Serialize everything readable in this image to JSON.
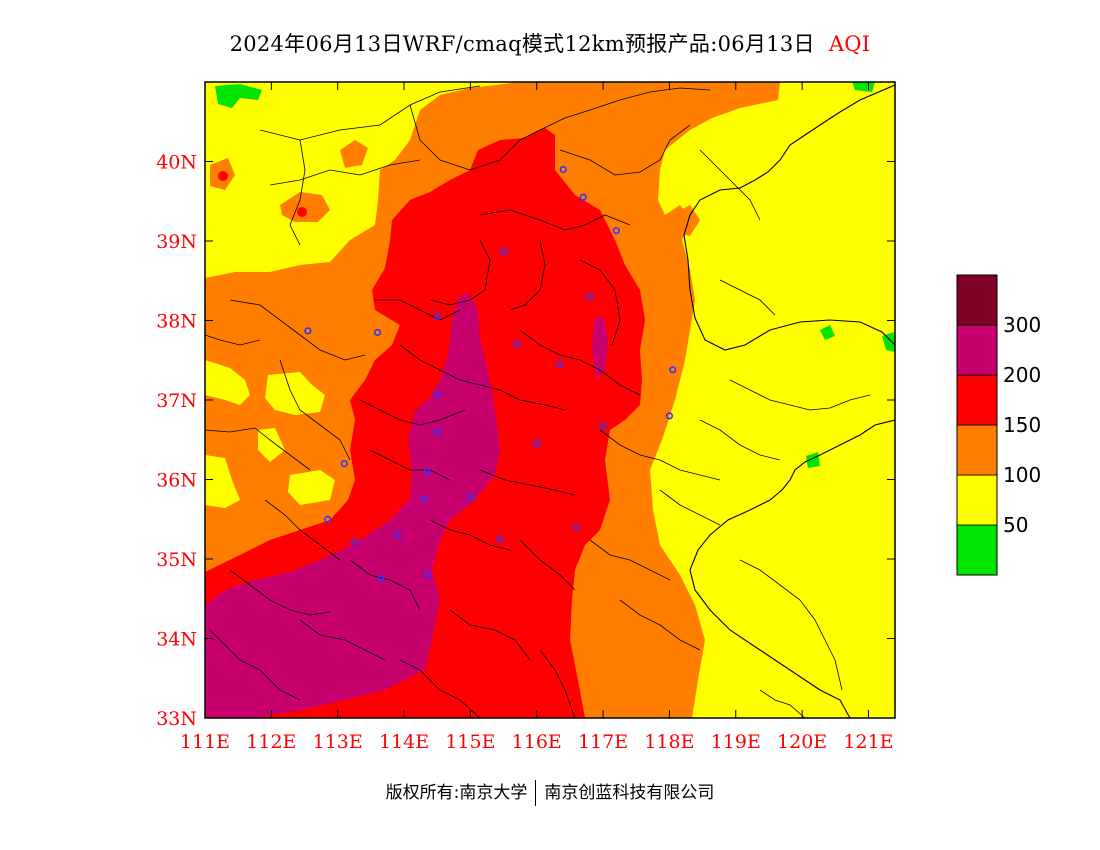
{
  "header": {
    "title": "2024年06月13日WRF/cmaq模式12km预报产品:06月13日",
    "variable": "AQI"
  },
  "map": {
    "lon_labels": [
      "111E",
      "112E",
      "113E",
      "114E",
      "115E",
      "116E",
      "117E",
      "118E",
      "119E",
      "120E",
      "121E"
    ],
    "lat_labels": [
      "40N",
      "39N",
      "38N",
      "37N",
      "36N",
      "35N",
      "34N",
      "33N"
    ],
    "extent": {
      "lon_min": 111,
      "lon_max": 121.4,
      "lat_min": 33,
      "lat_max": 41
    },
    "cities": [
      [
        116.4,
        39.9
      ],
      [
        116.7,
        39.55
      ],
      [
        117.2,
        39.13
      ],
      [
        115.5,
        38.87
      ],
      [
        116.8,
        38.3
      ],
      [
        114.5,
        38.05
      ],
      [
        112.55,
        37.87
      ],
      [
        113.6,
        37.85
      ],
      [
        115.7,
        37.7
      ],
      [
        116.35,
        37.45
      ],
      [
        114.5,
        37.07
      ],
      [
        114.5,
        36.6
      ],
      [
        116.0,
        36.45
      ],
      [
        117.0,
        36.67
      ],
      [
        118.05,
        37.38
      ],
      [
        118.0,
        36.8
      ],
      [
        113.1,
        36.2
      ],
      [
        114.35,
        36.1
      ],
      [
        114.3,
        35.75
      ],
      [
        115.0,
        35.77
      ],
      [
        112.85,
        35.5
      ],
      [
        113.25,
        35.22
      ],
      [
        113.9,
        35.3
      ],
      [
        115.45,
        35.25
      ],
      [
        116.6,
        35.4
      ],
      [
        114.35,
        34.8
      ],
      [
        113.65,
        34.75
      ]
    ]
  },
  "legend": {
    "title": "AQI",
    "levels": [
      {
        "color": "#00e400",
        "label": "50"
      },
      {
        "color": "#ffff00",
        "label": "100"
      },
      {
        "color": "#ff7e00",
        "label": "150"
      },
      {
        "color": "#ff0000",
        "label": "200"
      },
      {
        "color": "#c7006e",
        "label": "300"
      },
      {
        "color": "#7e0023",
        "label": ""
      }
    ]
  },
  "footer": {
    "left": "版权所有:南京大学",
    "right": "南京创蓝科技有限公司"
  }
}
